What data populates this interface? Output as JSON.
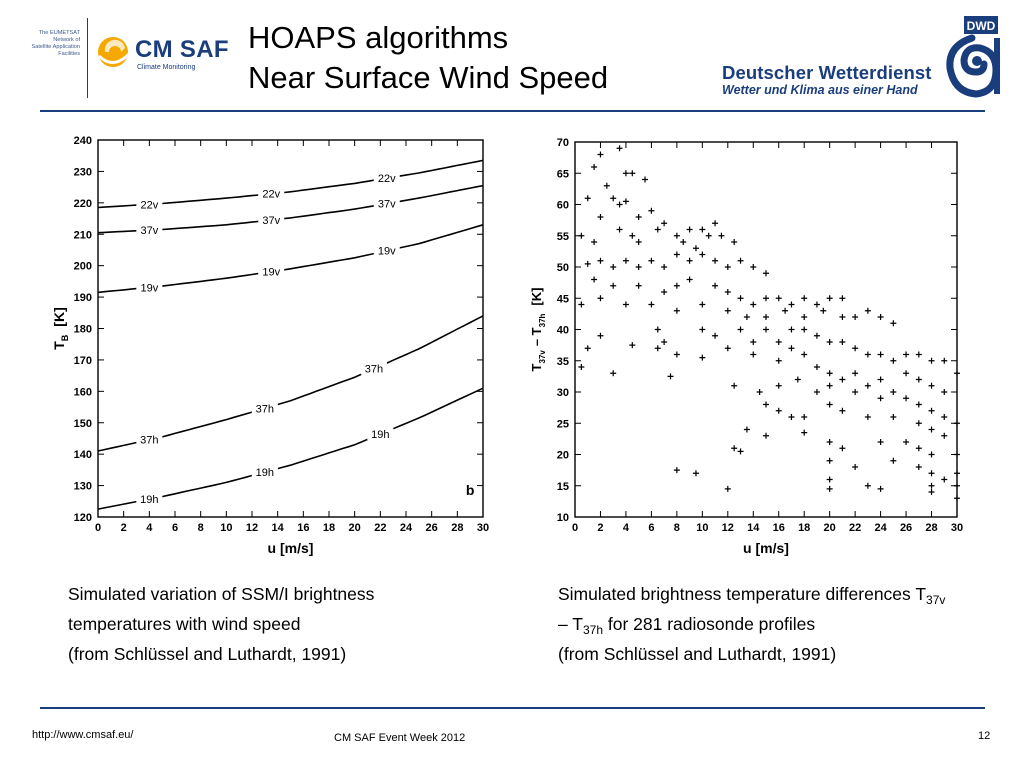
{
  "header": {
    "eumetsat_text": [
      "The EUMETSAT",
      "Network of",
      "Satellite Application",
      "Facilities"
    ],
    "cmsaf_name": "CM SAF",
    "cmsaf_sub": "Climate Monitoring",
    "title_line1": "HOAPS algorithms",
    "title_line2": "Near Surface Wind Speed",
    "dwd_badge": "DWD",
    "dwd_name": "Deutscher Wetterdienst",
    "dwd_slogan": "Wetter und Klima aus einer Hand"
  },
  "colors": {
    "brand_blue": "#1a3d7c",
    "cmsaf_yellow": "#f5a800"
  },
  "chart_data": [
    {
      "type": "line",
      "title": "",
      "panel_label": "b",
      "xlabel": "u   [m/s]",
      "ylabel": "T",
      "ylabel_sub": "B",
      "ylabel_unit": "[K]",
      "xlim": [
        0,
        30
      ],
      "ylim": [
        120,
        240
      ],
      "xticks": [
        0,
        2,
        4,
        6,
        8,
        10,
        12,
        14,
        16,
        18,
        20,
        22,
        24,
        26,
        28,
        30
      ],
      "yticks": [
        120,
        130,
        140,
        150,
        160,
        170,
        180,
        190,
        200,
        210,
        220,
        230,
        240
      ],
      "grid": false,
      "series": [
        {
          "name": "22v",
          "x": [
            0,
            5,
            10,
            15,
            20,
            25,
            30
          ],
          "y": [
            218.5,
            219.8,
            221.5,
            223.5,
            226.2,
            229.5,
            233.5
          ],
          "labels_at": [
            4,
            13.5,
            22.5
          ]
        },
        {
          "name": "37v",
          "x": [
            0,
            5,
            10,
            15,
            20,
            25,
            30
          ],
          "y": [
            210.5,
            211.5,
            213,
            215.2,
            218,
            221.5,
            225.5
          ],
          "labels_at": [
            4,
            13.5,
            22.5
          ]
        },
        {
          "name": "19v",
          "x": [
            0,
            5,
            10,
            15,
            20,
            25,
            30
          ],
          "y": [
            191.5,
            193.5,
            196,
            199,
            202.5,
            207,
            213
          ],
          "labels_at": [
            4,
            13.5,
            22.5
          ]
        },
        {
          "name": "37h",
          "x": [
            0,
            5,
            10,
            15,
            20,
            25,
            30
          ],
          "y": [
            141,
            145.5,
            151,
            157,
            164.5,
            173.5,
            184
          ],
          "labels_at": [
            4,
            13,
            21.5
          ]
        },
        {
          "name": "19h",
          "x": [
            0,
            5,
            10,
            15,
            20,
            25,
            30
          ],
          "y": [
            122.5,
            126.5,
            131,
            136.5,
            143,
            151.5,
            161
          ],
          "labels_at": [
            4,
            13,
            22
          ]
        }
      ]
    },
    {
      "type": "scatter",
      "title": "",
      "xlabel": "u   [m/s]",
      "ylabel": "T",
      "ylabel_sub1": "37v",
      "ylabel_mid": "–  T",
      "ylabel_sub2": "37h",
      "ylabel_unit": "[K]",
      "xlim": [
        0,
        30
      ],
      "ylim": [
        10,
        70
      ],
      "xticks": [
        0,
        2,
        4,
        6,
        8,
        10,
        12,
        14,
        16,
        18,
        20,
        22,
        24,
        26,
        28,
        30
      ],
      "yticks": [
        10,
        15,
        20,
        25,
        30,
        35,
        40,
        45,
        50,
        55,
        60,
        65,
        70
      ],
      "grid": false,
      "marker": "+",
      "points": [
        [
          2,
          68
        ],
        [
          3.5,
          69
        ],
        [
          5.5,
          64
        ],
        [
          1.5,
          66
        ],
        [
          4,
          65
        ],
        [
          4.5,
          65
        ],
        [
          2.5,
          63
        ],
        [
          1,
          61
        ],
        [
          3,
          61
        ],
        [
          4,
          60.5
        ],
        [
          3.5,
          60
        ],
        [
          6,
          59
        ],
        [
          2,
          58
        ],
        [
          5,
          58
        ],
        [
          7,
          57
        ],
        [
          0.5,
          55
        ],
        [
          1.5,
          54
        ],
        [
          3.5,
          56
        ],
        [
          4.5,
          55
        ],
        [
          5,
          54
        ],
        [
          6.5,
          56
        ],
        [
          8,
          55
        ],
        [
          9,
          56
        ],
        [
          10,
          56
        ],
        [
          11,
          57
        ],
        [
          8.5,
          54
        ],
        [
          9.5,
          53
        ],
        [
          10.5,
          55
        ],
        [
          11.5,
          55
        ],
        [
          12.5,
          54
        ],
        [
          1,
          50.5
        ],
        [
          2,
          51
        ],
        [
          3,
          50
        ],
        [
          4,
          51
        ],
        [
          5,
          50
        ],
        [
          6,
          51
        ],
        [
          7,
          50
        ],
        [
          8,
          52
        ],
        [
          9,
          51
        ],
        [
          10,
          52
        ],
        [
          11,
          51
        ],
        [
          12,
          50
        ],
        [
          13,
          51
        ],
        [
          14,
          50
        ],
        [
          15,
          49
        ],
        [
          1.5,
          48
        ],
        [
          3,
          47
        ],
        [
          5,
          47
        ],
        [
          7,
          46
        ],
        [
          8,
          47
        ],
        [
          9,
          48
        ],
        [
          11,
          47
        ],
        [
          12,
          46
        ],
        [
          13,
          45
        ],
        [
          14,
          44
        ],
        [
          15,
          45
        ],
        [
          16,
          45
        ],
        [
          17,
          44
        ],
        [
          18,
          45
        ],
        [
          19,
          44
        ],
        [
          20,
          45
        ],
        [
          21,
          45
        ],
        [
          0.5,
          44
        ],
        [
          2,
          45
        ],
        [
          4,
          44
        ],
        [
          6,
          44
        ],
        [
          8,
          43
        ],
        [
          10,
          44
        ],
        [
          12,
          43
        ],
        [
          13.5,
          42
        ],
        [
          15,
          42
        ],
        [
          16.5,
          43
        ],
        [
          18,
          42
        ],
        [
          19.5,
          43
        ],
        [
          21,
          42
        ],
        [
          22,
          42
        ],
        [
          23,
          43
        ],
        [
          24,
          42
        ],
        [
          25,
          41
        ],
        [
          6.5,
          40
        ],
        [
          7,
          38
        ],
        [
          10,
          40
        ],
        [
          11,
          39
        ],
        [
          13,
          40
        ],
        [
          14,
          38
        ],
        [
          15,
          40
        ],
        [
          16,
          38
        ],
        [
          17,
          40
        ],
        [
          18,
          40
        ],
        [
          19,
          39
        ],
        [
          20,
          38
        ],
        [
          21,
          38
        ],
        [
          22,
          37
        ],
        [
          23,
          36
        ],
        [
          24,
          36
        ],
        [
          25,
          35
        ],
        [
          26,
          36
        ],
        [
          27,
          36
        ],
        [
          28,
          35
        ],
        [
          29,
          35
        ],
        [
          1,
          37
        ],
        [
          2,
          39
        ],
        [
          4.5,
          37.5
        ],
        [
          6.5,
          37
        ],
        [
          8,
          36
        ],
        [
          10,
          35.5
        ],
        [
          12,
          37
        ],
        [
          14,
          36
        ],
        [
          16,
          35
        ],
        [
          17,
          37
        ],
        [
          18,
          36
        ],
        [
          19,
          34
        ],
        [
          20,
          33
        ],
        [
          21,
          32
        ],
        [
          22,
          33
        ],
        [
          23,
          31
        ],
        [
          24,
          32
        ],
        [
          25,
          30
        ],
        [
          26,
          33
        ],
        [
          27,
          32
        ],
        [
          28,
          31
        ],
        [
          29,
          30
        ],
        [
          30,
          33
        ],
        [
          0.5,
          34
        ],
        [
          3,
          33
        ],
        [
          7.5,
          32.5
        ],
        [
          12.5,
          31
        ],
        [
          14.5,
          30
        ],
        [
          16,
          31
        ],
        [
          17.5,
          32
        ],
        [
          19,
          30
        ],
        [
          20,
          31
        ],
        [
          22,
          30
        ],
        [
          24,
          29
        ],
        [
          26,
          29
        ],
        [
          27,
          28
        ],
        [
          28,
          27
        ],
        [
          29,
          26
        ],
        [
          30,
          25
        ],
        [
          15,
          28
        ],
        [
          16,
          27
        ],
        [
          17,
          26
        ],
        [
          18,
          26
        ],
        [
          20,
          28
        ],
        [
          21,
          27
        ],
        [
          23,
          26
        ],
        [
          25,
          26
        ],
        [
          27,
          25
        ],
        [
          28,
          24
        ],
        [
          29,
          23
        ],
        [
          13.5,
          24
        ],
        [
          15,
          23
        ],
        [
          18,
          23.5
        ],
        [
          20,
          22
        ],
        [
          21,
          21
        ],
        [
          24,
          22
        ],
        [
          26,
          22
        ],
        [
          27,
          21
        ],
        [
          28,
          20
        ],
        [
          30,
          20
        ],
        [
          12.5,
          21
        ],
        [
          13,
          20.5
        ],
        [
          20,
          19
        ],
        [
          22,
          18
        ],
        [
          25,
          19
        ],
        [
          27,
          18
        ],
        [
          28,
          17
        ],
        [
          29,
          16
        ],
        [
          30,
          17
        ],
        [
          8,
          17.5
        ],
        [
          9.5,
          17
        ],
        [
          20,
          16
        ],
        [
          23,
          15
        ],
        [
          28,
          15
        ],
        [
          30,
          15
        ],
        [
          12,
          14.5
        ],
        [
          20,
          14.5
        ],
        [
          24,
          14.5
        ],
        [
          28,
          14
        ],
        [
          30,
          13
        ]
      ]
    }
  ],
  "captions": {
    "left": {
      "line1": "Simulated variation of SSM/I brightness",
      "line2": "temperatures with wind speed",
      "line3": "(from Schlüssel and Luthardt, 1991)"
    },
    "right": {
      "line1_pre": "Simulated brightness temperature differences T",
      "line1_sub": "37v",
      "line2_pre": "– T",
      "line2_sub": "37h",
      "line2_post": " for 281 radiosonde profiles",
      "line3": "(from Schlüssel and Luthardt, 1991)"
    }
  },
  "footer": {
    "url": "http://www.cmsaf.eu/",
    "event": "CM SAF Event Week 2012",
    "page": "12"
  }
}
